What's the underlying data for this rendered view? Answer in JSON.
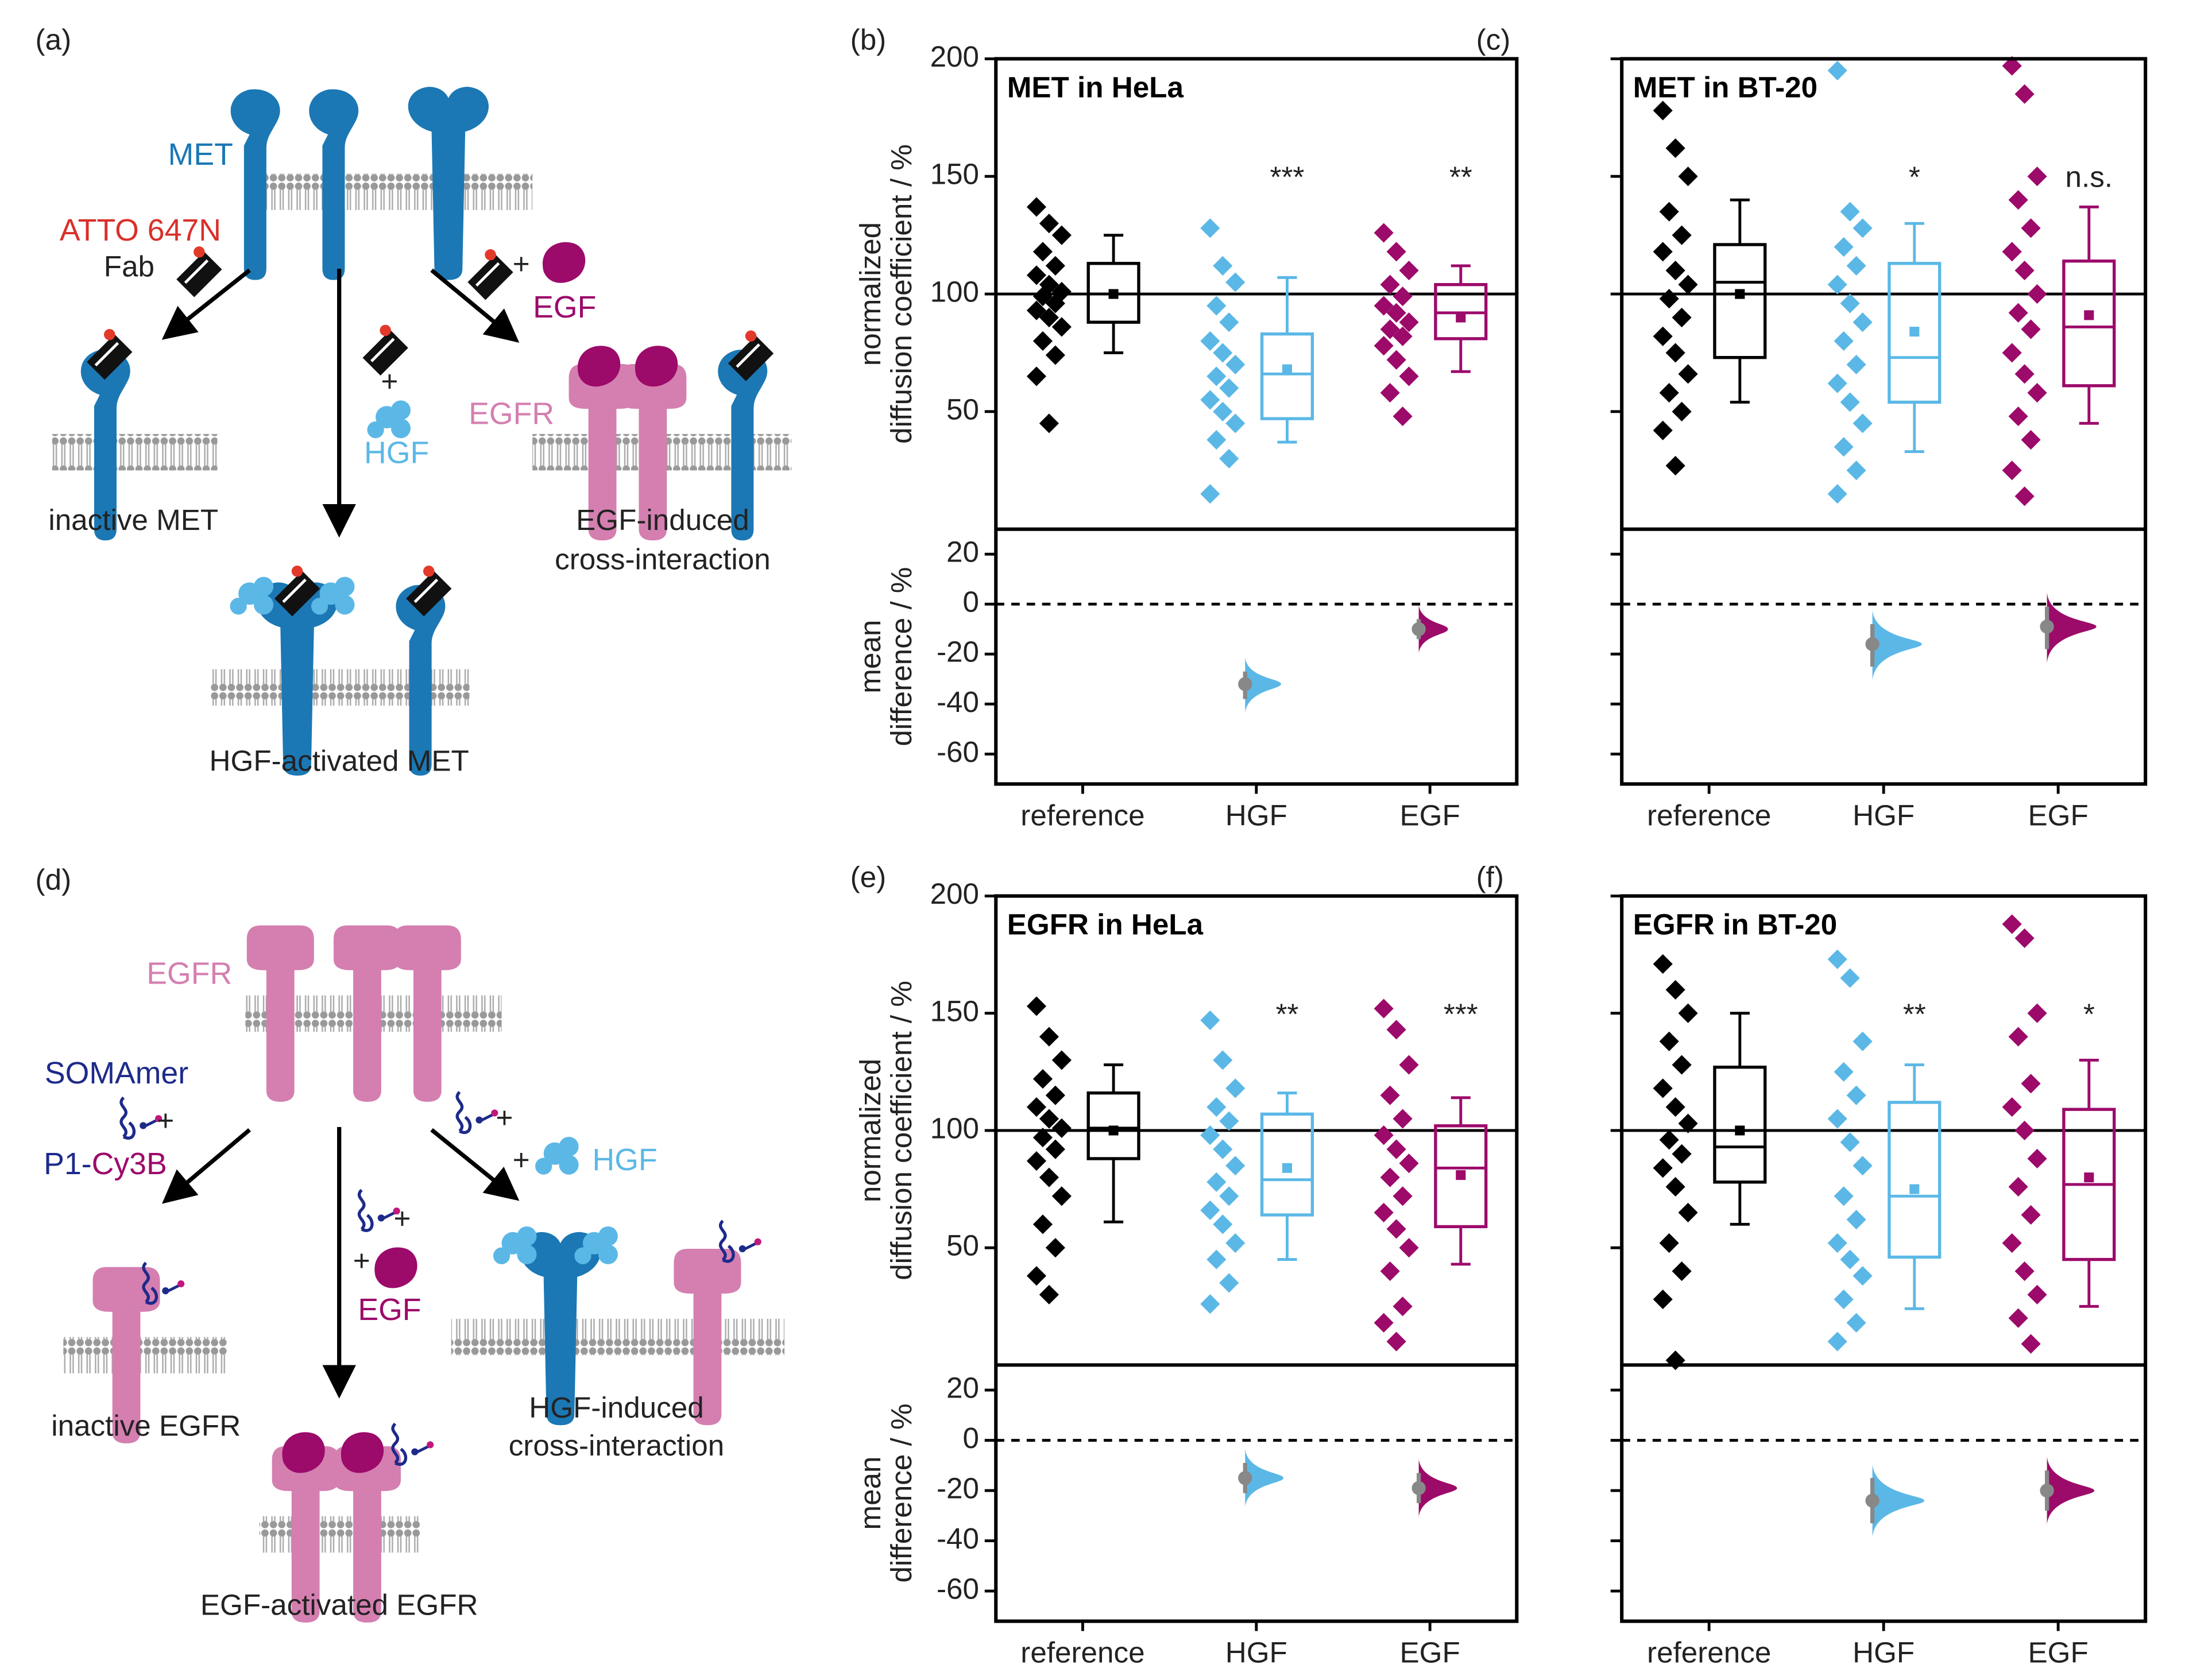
{
  "diagrams": [
    {
      "panel": "(a)",
      "met": "MET",
      "dye": "ATTO 647N",
      "fab": "Fab",
      "plus": "+",
      "egf": "EGF",
      "egfr": "EGFR",
      "hgf": "HGF",
      "inactive": "inactive MET",
      "activated": "HGF-activated MET",
      "cross": [
        "EGF-induced",
        "cross-interaction"
      ]
    },
    {
      "panel": "(d)",
      "egfr": "EGFR",
      "somamer": "SOMAmer",
      "p1": "P1-",
      "cy3b": "Cy3B",
      "plus": "+",
      "hgf": "HGF",
      "egf": "EGF",
      "inactive": "inactive EGFR",
      "activated": "EGF-activated EGFR",
      "cross": [
        "HGF-induced",
        "cross-interaction"
      ]
    }
  ],
  "chart_data": [
    {
      "type": "box-scatter",
      "panel": "(b)",
      "title": "MET in HeLa",
      "ylim": [
        0,
        200
      ],
      "yticks": [
        50,
        100,
        150,
        200
      ],
      "ytick_labels": true,
      "ylabel": [
        "normalized",
        "diffusion coefficient / %"
      ],
      "reference_line": 100,
      "diff_ylim": [
        -72,
        30
      ],
      "diff_yticks": [
        -60,
        -40,
        -20,
        0,
        20
      ],
      "diff_ylabel": [
        "mean",
        "difference / %"
      ],
      "diff_zero_line": 0,
      "series": [
        {
          "name": "reference",
          "color": "#000000",
          "values": [
            137,
            130,
            125,
            118,
            112,
            108,
            104,
            101,
            99,
            96,
            93,
            90,
            86,
            80,
            74,
            65,
            45
          ],
          "box": {
            "whisker_low": 75,
            "q1": 88,
            "median": 100,
            "q3": 113,
            "whisker_high": 125,
            "mean": 100
          }
        },
        {
          "name": "HGF",
          "color": "#5bb8e6",
          "values": [
            128,
            112,
            105,
            95,
            88,
            80,
            75,
            70,
            65,
            60,
            55,
            50,
            45,
            38,
            30,
            15
          ],
          "box": {
            "whisker_low": 37,
            "q1": 47,
            "median": 66,
            "q3": 83,
            "whisker_high": 107,
            "mean": 68
          },
          "annotation": "***",
          "mean_difference": -32,
          "ci": [
            -38,
            -27
          ]
        },
        {
          "name": "EGF",
          "color": "#9c0a6a",
          "values": [
            126,
            118,
            110,
            104,
            99,
            95,
            92,
            88,
            85,
            82,
            78,
            72,
            65,
            58,
            48
          ],
          "box": {
            "whisker_low": 67,
            "q1": 81,
            "median": 92,
            "q3": 104,
            "whisker_high": 112,
            "mean": 90
          },
          "annotation": "**",
          "mean_difference": -10,
          "ci": [
            -14,
            -6
          ]
        }
      ]
    },
    {
      "type": "box-scatter",
      "panel": "(c)",
      "title": "MET in BT-20",
      "ylim": [
        0,
        200
      ],
      "yticks": [
        50,
        100,
        150,
        200
      ],
      "ytick_labels": false,
      "reference_line": 100,
      "diff_ylim": [
        -72,
        30
      ],
      "diff_yticks": [
        -60,
        -40,
        -20,
        0,
        20
      ],
      "diff_zero_line": 0,
      "series": [
        {
          "name": "reference",
          "color": "#000000",
          "values": [
            178,
            162,
            150,
            135,
            125,
            118,
            110,
            104,
            98,
            90,
            82,
            75,
            66,
            58,
            50,
            42,
            27
          ],
          "box": {
            "whisker_low": 54,
            "q1": 73,
            "median": 105,
            "q3": 121,
            "whisker_high": 140,
            "mean": 100
          }
        },
        {
          "name": "HGF",
          "color": "#5bb8e6",
          "values": [
            195,
            135,
            128,
            120,
            112,
            104,
            96,
            88,
            80,
            70,
            62,
            54,
            45,
            35,
            25,
            15
          ],
          "box": {
            "whisker_low": 33,
            "q1": 54,
            "median": 73,
            "q3": 113,
            "whisker_high": 130,
            "mean": 84
          },
          "annotation": "*",
          "mean_difference": -16,
          "ci": [
            -25,
            -8
          ]
        },
        {
          "name": "EGF",
          "color": "#9c0a6a",
          "values": [
            197,
            185,
            150,
            140,
            128,
            118,
            110,
            100,
            92,
            85,
            75,
            66,
            58,
            48,
            38,
            25,
            14
          ],
          "box": {
            "whisker_low": 45,
            "q1": 61,
            "median": 86,
            "q3": 114,
            "whisker_high": 137,
            "mean": 91
          },
          "annotation": "n.s.",
          "mean_difference": -9,
          "ci": [
            -18,
            -1
          ]
        }
      ]
    },
    {
      "type": "box-scatter",
      "panel": "(e)",
      "title": "EGFR in HeLa",
      "ylim": [
        0,
        200
      ],
      "yticks": [
        50,
        100,
        150,
        200
      ],
      "ytick_labels": true,
      "ylabel": [
        "normalized",
        "diffusion coefficient / %"
      ],
      "reference_line": 100,
      "diff_ylim": [
        -72,
        30
      ],
      "diff_yticks": [
        -60,
        -40,
        -20,
        0,
        20
      ],
      "diff_ylabel": [
        "mean",
        "difference / %"
      ],
      "diff_zero_line": 0,
      "series": [
        {
          "name": "reference",
          "color": "#000000",
          "values": [
            153,
            140,
            130,
            122,
            115,
            110,
            105,
            101,
            97,
            92,
            87,
            80,
            72,
            60,
            50,
            38,
            30
          ],
          "box": {
            "whisker_low": 61,
            "q1": 88,
            "median": 101,
            "q3": 116,
            "whisker_high": 128,
            "mean": 100
          }
        },
        {
          "name": "HGF",
          "color": "#5bb8e6",
          "values": [
            147,
            130,
            118,
            110,
            104,
            98,
            92,
            85,
            78,
            72,
            66,
            60,
            52,
            45,
            35,
            26
          ],
          "box": {
            "whisker_low": 45,
            "q1": 64,
            "median": 79,
            "q3": 107,
            "whisker_high": 116,
            "mean": 84
          },
          "annotation": "**",
          "mean_difference": -15,
          "ci": [
            -21,
            -9
          ]
        },
        {
          "name": "EGF",
          "color": "#9c0a6a",
          "values": [
            152,
            143,
            128,
            115,
            105,
            98,
            92,
            86,
            80,
            72,
            65,
            58,
            50,
            40,
            25,
            18,
            10
          ],
          "box": {
            "whisker_low": 43,
            "q1": 59,
            "median": 84,
            "q3": 102,
            "whisker_high": 114,
            "mean": 81
          },
          "annotation": "***",
          "mean_difference": -19,
          "ci": [
            -25,
            -13
          ]
        }
      ]
    },
    {
      "type": "box-scatter",
      "panel": "(f)",
      "title": "EGFR in BT-20",
      "ylim": [
        0,
        200
      ],
      "yticks": [
        50,
        100,
        150,
        200
      ],
      "ytick_labels": false,
      "reference_line": 100,
      "diff_ylim": [
        -72,
        30
      ],
      "diff_yticks": [
        -60,
        -40,
        -20,
        0,
        20
      ],
      "diff_zero_line": 0,
      "series": [
        {
          "name": "reference",
          "color": "#000000",
          "values": [
            171,
            160,
            150,
            138,
            128,
            118,
            110,
            103,
            96,
            90,
            84,
            76,
            65,
            52,
            40,
            28,
            2
          ],
          "box": {
            "whisker_low": 60,
            "q1": 78,
            "median": 93,
            "q3": 127,
            "whisker_high": 150,
            "mean": 100
          }
        },
        {
          "name": "HGF",
          "color": "#5bb8e6",
          "values": [
            173,
            165,
            138,
            125,
            115,
            105,
            95,
            85,
            72,
            62,
            52,
            45,
            38,
            28,
            18,
            10
          ],
          "box": {
            "whisker_low": 24,
            "q1": 46,
            "median": 72,
            "q3": 112,
            "whisker_high": 128,
            "mean": 75
          },
          "annotation": "**",
          "mean_difference": -24,
          "ci": [
            -33,
            -15
          ]
        },
        {
          "name": "EGF",
          "color": "#9c0a6a",
          "values": [
            188,
            182,
            150,
            140,
            120,
            110,
            100,
            88,
            76,
            64,
            52,
            40,
            30,
            20,
            9
          ],
          "box": {
            "whisker_low": 25,
            "q1": 45,
            "median": 77,
            "q3": 109,
            "whisker_high": 130,
            "mean": 80
          },
          "annotation": "*",
          "mean_difference": -20,
          "ci": [
            -28,
            -12
          ]
        }
      ]
    }
  ]
}
